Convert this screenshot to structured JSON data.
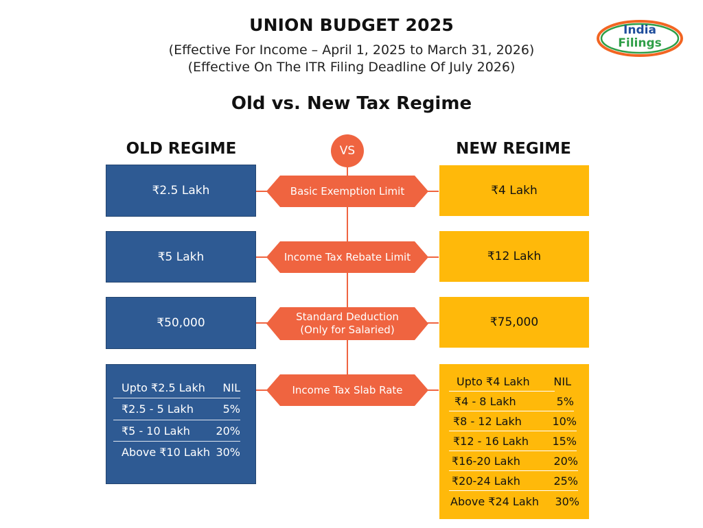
{
  "header": {
    "title": "UNION BUDGET 2025",
    "subtitle_line1": "(Effective For Income – April 1, 2025 to March 31, 2026)",
    "subtitle_line2": "(Effective On The ITR Filing Deadline Of July 2026)",
    "heading": "Old vs. New Tax Regime"
  },
  "logo": {
    "line1": "India",
    "line2": "Filings"
  },
  "columns": {
    "old": "OLD REGIME",
    "vs": "VS",
    "new": "NEW REGIME"
  },
  "rows": [
    {
      "label": "Basic Exemption Limit",
      "old": "₹2.5 Lakh",
      "new": "₹4 Lakh"
    },
    {
      "label": "Income Tax Rebate Limit",
      "old": "₹5 Lakh",
      "new": "₹12 Lakh"
    },
    {
      "label_line1": "Standard Deduction",
      "label_line2": "(Only for Salaried)",
      "old": "₹50,000",
      "new": "₹75,000"
    },
    {
      "label": "Income Tax Slab Rate"
    }
  ],
  "old_slabs": [
    {
      "range": "Upto ₹2.5 Lakh",
      "rate": "NIL"
    },
    {
      "range": "₹2.5 - 5 Lakh",
      "rate": "5%"
    },
    {
      "range": "₹5 - 10 Lakh",
      "rate": "20%"
    },
    {
      "range": "Above ₹10 Lakh",
      "rate": "30%"
    }
  ],
  "new_slabs": [
    {
      "range": "Upto ₹4 Lakh",
      "rate": "NIL"
    },
    {
      "range": "₹4 - 8 Lakh",
      "rate": "5%"
    },
    {
      "range": "₹8 - 12 Lakh",
      "rate": "10%"
    },
    {
      "range": "₹12 - 16 Lakh",
      "rate": "15%"
    },
    {
      "range": "₹16-20 Lakh",
      "rate": "20%"
    },
    {
      "range": "₹20-24 Lakh",
      "rate": "25%"
    },
    {
      "range": "Above ₹24 Lakh",
      "rate": "30%"
    }
  ],
  "colors": {
    "old_box": "#2e5a93",
    "new_box": "#ffb90a",
    "accent": "#ef6440",
    "logo_orange": "#f26522",
    "logo_green": "#2e9e47",
    "logo_blue": "#1f4e9c"
  }
}
